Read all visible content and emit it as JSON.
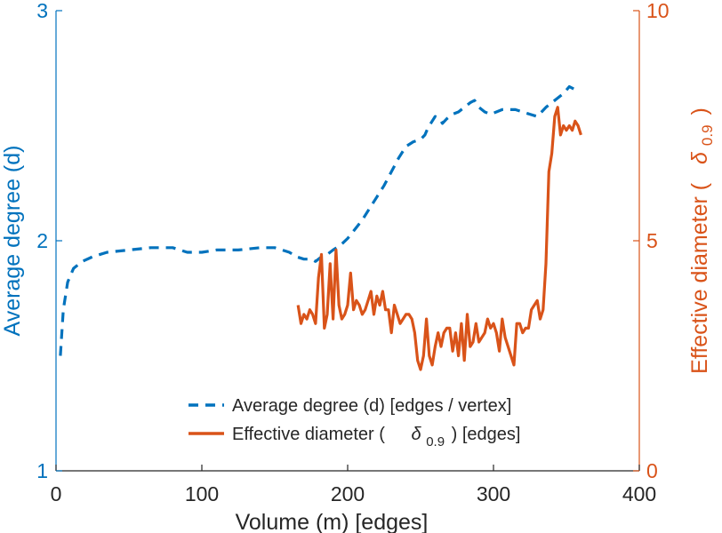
{
  "colors": {
    "left_axis": "#0072BD",
    "right_axis": "#D95319",
    "text": "#262626"
  },
  "chart_data": {
    "type": "line",
    "grid": false,
    "legend_position": "bottom-right",
    "xlabel": "Volume (m) [edges]",
    "xlim": [
      0,
      400
    ],
    "x_ticks": [
      "0",
      "100",
      "200",
      "300",
      "400"
    ],
    "y_left": {
      "label": "Average degree (d)",
      "lim": [
        1,
        3
      ],
      "ticks": [
        "1",
        "2",
        "3"
      ]
    },
    "y_right": {
      "label_prefix": "Effective diameter (",
      "label_symbol": "δ",
      "label_sub": "0.9",
      "label_suffix": ")",
      "lim": [
        0,
        10
      ],
      "ticks": [
        "0",
        "5",
        "10"
      ]
    },
    "series": [
      {
        "name": "Average degree (d) [edges / vertex]",
        "axis": "left",
        "color": "#0072BD",
        "style": "dashed",
        "x": [
          3,
          5,
          8,
          12,
          18,
          25,
          35,
          50,
          65,
          80,
          90,
          100,
          110,
          125,
          140,
          150,
          160,
          165,
          170,
          175,
          178,
          182,
          186,
          190,
          195,
          200,
          205,
          210,
          215,
          220,
          225,
          230,
          235,
          240,
          245,
          250,
          253,
          255,
          258,
          260,
          263,
          265,
          268,
          272,
          276,
          280,
          284,
          287,
          290,
          294,
          298,
          302,
          306,
          310,
          315,
          320,
          325,
          330,
          333,
          336,
          340,
          344,
          348,
          352,
          355
        ],
        "y": [
          1.5,
          1.7,
          1.82,
          1.88,
          1.91,
          1.93,
          1.95,
          1.96,
          1.97,
          1.97,
          1.95,
          1.95,
          1.96,
          1.96,
          1.97,
          1.97,
          1.95,
          1.93,
          1.92,
          1.92,
          1.91,
          1.93,
          1.94,
          1.96,
          1.98,
          2.01,
          2.05,
          2.09,
          2.14,
          2.19,
          2.24,
          2.3,
          2.36,
          2.41,
          2.43,
          2.44,
          2.46,
          2.49,
          2.52,
          2.54,
          2.53,
          2.51,
          2.53,
          2.55,
          2.56,
          2.58,
          2.6,
          2.61,
          2.58,
          2.56,
          2.55,
          2.56,
          2.57,
          2.57,
          2.57,
          2.56,
          2.55,
          2.54,
          2.56,
          2.58,
          2.6,
          2.62,
          2.64,
          2.67,
          2.66
        ]
      },
      {
        "name_prefix": "Effective diameter (",
        "name_symbol": "δ",
        "name_sub": "0.9",
        "name_suffix": ") [edges]",
        "axis": "right",
        "color": "#D95319",
        "style": "solid",
        "x": [
          166,
          168,
          170,
          172,
          174,
          176,
          178,
          180,
          182,
          184,
          186,
          188,
          190,
          192,
          194,
          196,
          198,
          200,
          202,
          204,
          206,
          208,
          210,
          212,
          214,
          216,
          218,
          220,
          222,
          224,
          226,
          228,
          230,
          232,
          234,
          236,
          238,
          240,
          242,
          244,
          246,
          248,
          250,
          252,
          254,
          256,
          258,
          260,
          262,
          264,
          266,
          268,
          270,
          272,
          274,
          276,
          278,
          280,
          282,
          284,
          286,
          288,
          290,
          292,
          294,
          296,
          298,
          300,
          302,
          304,
          306,
          308,
          310,
          312,
          314,
          316,
          318,
          320,
          322,
          324,
          326,
          328,
          330,
          332,
          334,
          336,
          338,
          340,
          342,
          344,
          346,
          348,
          350,
          352,
          354,
          356,
          358,
          360
        ],
        "y": [
          3.6,
          3.2,
          3.4,
          3.3,
          3.5,
          3.4,
          3.2,
          4.2,
          4.7,
          3.1,
          3.4,
          4.5,
          3.3,
          4.8,
          3.6,
          3.3,
          3.4,
          3.6,
          4.3,
          3.5,
          3.7,
          3.6,
          3.4,
          3.5,
          3.7,
          3.9,
          3.4,
          3.8,
          3.6,
          3.9,
          3.5,
          3.5,
          3.0,
          3.6,
          3.4,
          3.2,
          3.3,
          3.4,
          3.4,
          3.3,
          3.0,
          2.4,
          2.2,
          2.5,
          3.3,
          2.5,
          2.3,
          2.7,
          3.0,
          2.7,
          3.0,
          3.1,
          3.1,
          2.6,
          3.0,
          2.5,
          3.2,
          2.4,
          3.4,
          2.7,
          2.8,
          3.2,
          2.8,
          2.9,
          3.0,
          3.3,
          3.1,
          3.2,
          3.0,
          2.6,
          3.3,
          2.9,
          2.7,
          2.5,
          2.3,
          3.2,
          3.2,
          3.0,
          3.1,
          3.1,
          3.5,
          3.6,
          3.7,
          3.3,
          3.5,
          4.5,
          6.5,
          6.9,
          7.7,
          7.9,
          7.3,
          7.5,
          7.4,
          7.5,
          7.4,
          7.6,
          7.5,
          7.3
        ]
      }
    ]
  }
}
